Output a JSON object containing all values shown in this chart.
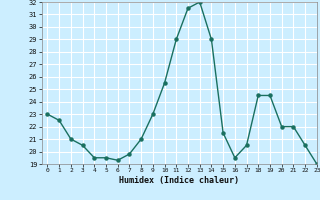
{
  "x": [
    0,
    1,
    2,
    3,
    4,
    5,
    6,
    7,
    8,
    9,
    10,
    11,
    12,
    13,
    14,
    15,
    16,
    17,
    18,
    19,
    20,
    21,
    22,
    23
  ],
  "y": [
    23.0,
    22.5,
    21.0,
    20.5,
    19.5,
    19.5,
    19.3,
    19.8,
    21.0,
    23.0,
    25.5,
    29.0,
    31.5,
    32.0,
    29.0,
    21.5,
    19.5,
    20.5,
    24.5,
    24.5,
    22.0,
    22.0,
    20.5,
    19.0
  ],
  "xlabel": "Humidex (Indice chaleur)",
  "ylim": [
    19,
    32
  ],
  "xlim": [
    -0.5,
    23
  ],
  "yticks": [
    19,
    20,
    21,
    22,
    23,
    24,
    25,
    26,
    27,
    28,
    29,
    30,
    31,
    32
  ],
  "xticks": [
    0,
    1,
    2,
    3,
    4,
    5,
    6,
    7,
    8,
    9,
    10,
    11,
    12,
    13,
    14,
    15,
    16,
    17,
    18,
    19,
    20,
    21,
    22,
    23
  ],
  "line_color": "#1a7060",
  "marker_color": "#1a7060",
  "bg_color": "#cceeff",
  "grid_color": "#ffffff",
  "fig_bg": "#cceeff",
  "spine_color": "#888888"
}
